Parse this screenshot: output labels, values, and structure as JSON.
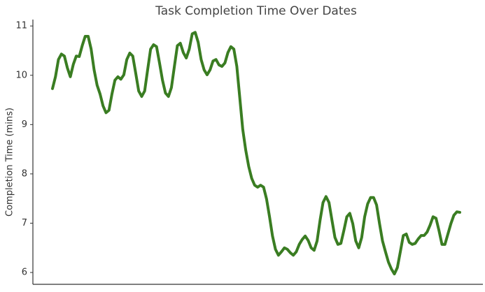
{
  "chart_data": {
    "type": "line",
    "title": "Task Completion Time Over Dates",
    "y_label": "Completion Time (mins)",
    "color": "#3a7d22",
    "ylim": [
      5.76,
      11.13
    ],
    "yticks": [
      6,
      7,
      8,
      9,
      10,
      11
    ],
    "grid": false,
    "values": [
      9.73,
      9.97,
      10.32,
      10.43,
      10.39,
      10.15,
      9.97,
      10.22,
      10.39,
      10.38,
      10.6,
      10.79,
      10.79,
      10.53,
      10.11,
      9.8,
      9.62,
      9.38,
      9.24,
      9.29,
      9.62,
      9.9,
      9.97,
      9.92,
      10.01,
      10.32,
      10.45,
      10.39,
      10.04,
      9.68,
      9.57,
      9.68,
      10.11,
      10.53,
      10.62,
      10.58,
      10.25,
      9.9,
      9.64,
      9.57,
      9.75,
      10.18,
      10.6,
      10.65,
      10.46,
      10.35,
      10.53,
      10.84,
      10.87,
      10.67,
      10.32,
      10.11,
      10.01,
      10.11,
      10.29,
      10.32,
      10.21,
      10.18,
      10.25,
      10.46,
      10.58,
      10.53,
      10.18,
      9.54,
      8.9,
      8.48,
      8.15,
      7.91,
      7.77,
      7.73,
      7.77,
      7.73,
      7.49,
      7.13,
      6.74,
      6.47,
      6.35,
      6.42,
      6.5,
      6.47,
      6.4,
      6.35,
      6.42,
      6.57,
      6.67,
      6.74,
      6.65,
      6.5,
      6.45,
      6.64,
      7.06,
      7.42,
      7.54,
      7.42,
      7.06,
      6.71,
      6.57,
      6.59,
      6.85,
      7.13,
      7.2,
      6.99,
      6.64,
      6.5,
      6.71,
      7.13,
      7.39,
      7.52,
      7.52,
      7.37,
      6.99,
      6.64,
      6.42,
      6.21,
      6.07,
      5.97,
      6.1,
      6.42,
      6.75,
      6.78,
      6.61,
      6.57,
      6.59,
      6.68,
      6.75,
      6.75,
      6.82,
      6.96,
      7.13,
      7.1,
      6.85,
      6.57,
      6.57,
      6.78,
      6.99,
      7.16,
      7.23,
      7.22
    ]
  }
}
